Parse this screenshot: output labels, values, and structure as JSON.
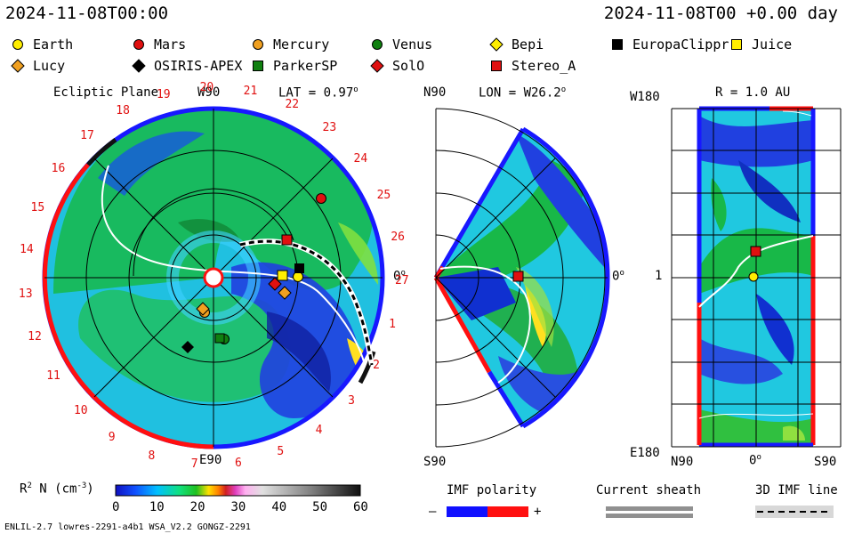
{
  "header": {
    "date_left": "2024-11-08T00:00",
    "date_right": "2024-11-08T00 +0.00 day"
  },
  "legend": [
    {
      "name": "Earth",
      "shape": "circle",
      "color": "#ffee00"
    },
    {
      "name": "Mars",
      "shape": "circle",
      "color": "#e01010"
    },
    {
      "name": "Mercury",
      "shape": "circle",
      "color": "#f0a020"
    },
    {
      "name": "Venus",
      "shape": "circle",
      "color": "#108010"
    },
    {
      "name": "Bepi",
      "shape": "diamond",
      "color": "#ffee00"
    },
    {
      "name": "EuropaClippr",
      "shape": "square",
      "color": "#000000"
    },
    {
      "name": "Juice",
      "shape": "square",
      "color": "#ffee00"
    },
    {
      "name": "Lucy",
      "shape": "diamond",
      "color": "#f0a020"
    },
    {
      "name": "OSIRIS-APEX",
      "shape": "diamond",
      "color": "#000000"
    },
    {
      "name": "ParkerSP",
      "shape": "square",
      "color": "#108010"
    },
    {
      "name": "SolO",
      "shape": "diamond",
      "color": "#e01010"
    },
    {
      "name": "Stereo_A",
      "shape": "square",
      "color": "#e01010"
    }
  ],
  "ecliptic": {
    "title": "Ecliptic Plane",
    "w90": "W90",
    "e90": "E90",
    "lat_label": "LAT = 0.97",
    "zero": "0",
    "carrington_ticks": [
      "20",
      "21",
      "22",
      "23",
      "24",
      "25",
      "26",
      "27",
      "1",
      "2",
      "3",
      "4",
      "5",
      "6",
      "7",
      "8",
      "9",
      "10",
      "11",
      "12",
      "13",
      "14",
      "15",
      "16",
      "17",
      "18",
      "19"
    ]
  },
  "meridional": {
    "lon_label": "LON = W26.2",
    "n90": "N90",
    "s90": "S90",
    "zero": "0"
  },
  "latlon": {
    "r_label": "R = 1.0 AU",
    "w180": "W180",
    "e180": "E180",
    "n90": "N90",
    "zero": "0",
    "s90": "S90",
    "one": "1"
  },
  "colorbar": {
    "label": "R",
    "label_sup": "2",
    "label_rest": " N (cm",
    "label_exp": "-3",
    "label_end": ")",
    "ticks": [
      "0",
      "10",
      "20",
      "30",
      "40",
      "50",
      "60"
    ],
    "min": 0,
    "max": 60
  },
  "keys": {
    "imf_polarity": "IMF polarity",
    "minus": "–",
    "plus": "+",
    "current_sheath": "Current sheath",
    "imf_line": "3D IMF line"
  },
  "footer": {
    "model": "ENLIL-2.7 lowres-2291-a4b1 WSA_V2.2 GONGZ-2291"
  },
  "chart_data": {
    "type": "heatmap",
    "quantity": "R2 N (cm-3)",
    "scale_range": [
      0,
      60
    ],
    "bodies": [
      {
        "name": "Earth"
      },
      {
        "name": "Mars"
      },
      {
        "name": "Mercury"
      },
      {
        "name": "Venus"
      },
      {
        "name": "Bepi"
      },
      {
        "name": "EuropaClippr"
      },
      {
        "name": "Juice"
      },
      {
        "name": "Lucy"
      },
      {
        "name": "OSIRIS-APEX"
      },
      {
        "name": "ParkerSP"
      },
      {
        "name": "SolO"
      },
      {
        "name": "Stereo_A"
      }
    ]
  }
}
